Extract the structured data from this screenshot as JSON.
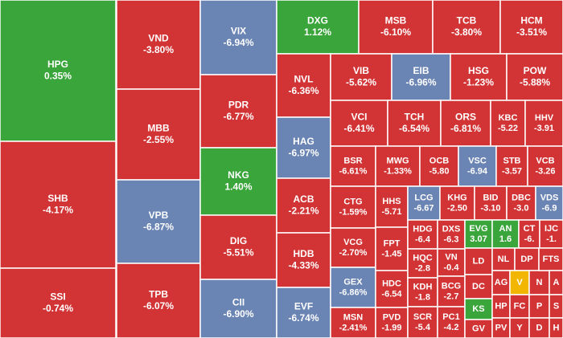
{
  "chart_data": {
    "type": "treemap",
    "categories": [
      "HPG",
      "SHB",
      "SSI",
      "VND",
      "MBB",
      "VPB",
      "TPB",
      "VIX",
      "PDR",
      "NKG",
      "DIG",
      "CII",
      "DXG",
      "MSB",
      "TCB",
      "HCM",
      "NVL",
      "HAG",
      "ACB",
      "HDB",
      "EVF",
      "VIB",
      "EIB",
      "HSG",
      "POW",
      "VCI",
      "TCH",
      "ORS",
      "KBC",
      "HHV",
      "BSR",
      "MWG",
      "OCB",
      "VSC",
      "STB",
      "VCB",
      "CTG",
      "VCG",
      "GEX",
      "MSN",
      "HHS",
      "FPT",
      "HDC",
      "PVD",
      "LCG",
      "KHG",
      "BID",
      "DBC",
      "VDS",
      "HDG",
      "HQC",
      "KDH",
      "SCR",
      "DXS",
      "VN",
      "BCG",
      "PC1",
      "EVG",
      "LD",
      "DC",
      "KS",
      "GV",
      "AN",
      "NL",
      "AG",
      "HP",
      "PV",
      "CT",
      "DP",
      "V",
      "FC",
      "Y",
      "N",
      "P",
      "D",
      "IJC",
      "FTS",
      "A",
      "S",
      "H"
    ],
    "values": [
      0.35,
      -4.17,
      -0.74,
      -3.8,
      -2.55,
      -6.87,
      -6.07,
      -6.94,
      -6.77,
      1.4,
      -5.51,
      -6.9,
      1.12,
      -6.1,
      -3.8,
      -3.51,
      -6.36,
      -6.97,
      -2.21,
      -4.33,
      -6.74,
      -5.62,
      -6.96,
      -1.23,
      -5.88,
      -6.41,
      -6.54,
      -6.81,
      -5.22,
      -3.91,
      -6.61,
      -1.33,
      -5.8,
      -6.94,
      -3.57,
      -3.26,
      -1.59,
      -2.7,
      -6.86,
      -2.41,
      -5.71,
      -1.45,
      -6.54,
      -1.99,
      -6.67,
      -2.5,
      -3.1,
      -3.0,
      -6.9,
      -6.4,
      -2.8,
      -1.8,
      -5.4,
      -6.3,
      -0.4,
      -2.7,
      -4.2,
      3.07,
      null,
      null,
      null,
      null,
      1.6,
      null,
      null,
      null,
      null,
      -6,
      null,
      null,
      null,
      null,
      null,
      null,
      null,
      -1,
      null,
      null,
      null,
      null
    ],
    "value_labels": [
      "0.35%",
      "-4.17%",
      "-0.74%",
      "-3.80%",
      "-2.55%",
      "-6.87%",
      "-6.07%",
      "-6.94%",
      "-6.77%",
      "1.40%",
      "-5.51%",
      "-6.90%",
      "1.12%",
      "-6.10%",
      "-3.80%",
      "-3.51%",
      "-6.36%",
      "-6.97%",
      "-2.21%",
      "-4.33%",
      "-6.74%",
      "-5.62%",
      "-6.96%",
      "-1.23%",
      "-5.88%",
      "-6.41%",
      "-6.54%",
      "-6.81%",
      "-5.22",
      "-3.91",
      "-6.61%",
      "-1.33%",
      "-5.80",
      "-6.94",
      "-3.57",
      "-3.26",
      "-1.59%",
      "-2.70%",
      "-6.86%",
      "-2.41%",
      "-5.71",
      "-1.45",
      "-6.54",
      "-1.99",
      "-6.67",
      "-2.50",
      "-3.10",
      "-3.0",
      "-6.9",
      "-6.4",
      "-2.8",
      "-1.8",
      "-5.4",
      "-6.3",
      "-0.4",
      "-2.7",
      "-4.2",
      "3.07",
      null,
      null,
      null,
      null,
      "1.6",
      null,
      null,
      null,
      null,
      "-6.",
      null,
      null,
      null,
      null,
      null,
      null,
      null,
      "-1.",
      null,
      null,
      null,
      null
    ],
    "colors": {
      "down": "#d23435",
      "ceiling": "#3aa53a",
      "floor": "#6a84b3",
      "flat": "#f2b600"
    },
    "tile_status": [
      "ceiling",
      "down",
      "down",
      "down",
      "down",
      "floor",
      "down",
      "floor",
      "down",
      "ceiling",
      "down",
      "floor",
      "ceiling",
      "down",
      "down",
      "down",
      "down",
      "floor",
      "down",
      "down",
      "floor",
      "down",
      "floor",
      "down",
      "down",
      "down",
      "down",
      "down",
      "down",
      "down",
      "down",
      "down",
      "down",
      "floor",
      "down",
      "down",
      "down",
      "down",
      "floor",
      "down",
      "down",
      "down",
      "down",
      "down",
      "floor",
      "down",
      "down",
      "down",
      "floor",
      "down",
      "down",
      "down",
      "down",
      "down",
      "down",
      "down",
      "down",
      "ceiling",
      "down",
      "down",
      "ceiling",
      "down",
      "ceiling",
      "down",
      "down",
      "down",
      "down",
      "down",
      "down",
      "flat",
      "down",
      "down",
      "down",
      "down",
      "down",
      "down",
      "down",
      "down",
      "down",
      "down"
    ]
  }
}
